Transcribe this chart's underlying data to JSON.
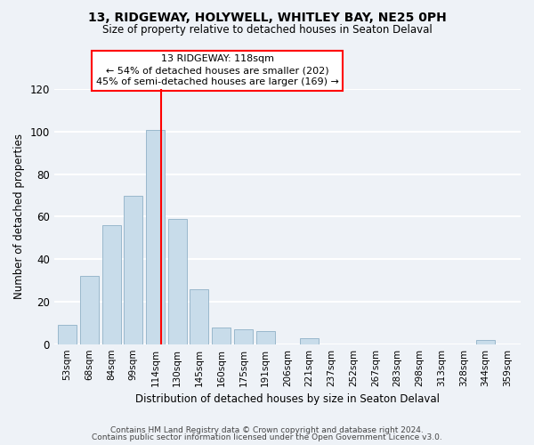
{
  "title": "13, RIDGEWAY, HOLYWELL, WHITLEY BAY, NE25 0PH",
  "subtitle": "Size of property relative to detached houses in Seaton Delaval",
  "xlabel": "Distribution of detached houses by size in Seaton Delaval",
  "ylabel": "Number of detached properties",
  "bar_color": "#c8dcea",
  "bar_edge_color": "#9ab8cc",
  "categories": [
    "53sqm",
    "68sqm",
    "84sqm",
    "99sqm",
    "114sqm",
    "130sqm",
    "145sqm",
    "160sqm",
    "175sqm",
    "191sqm",
    "206sqm",
    "221sqm",
    "237sqm",
    "252sqm",
    "267sqm",
    "283sqm",
    "298sqm",
    "313sqm",
    "328sqm",
    "344sqm",
    "359sqm"
  ],
  "values": [
    9,
    32,
    56,
    70,
    101,
    59,
    26,
    8,
    7,
    6,
    0,
    3,
    0,
    0,
    0,
    0,
    0,
    0,
    0,
    2,
    0
  ],
  "marker_color": "red",
  "annotation_line1": "13 RIDGEWAY: 118sqm",
  "annotation_line2": "← 54% of detached houses are smaller (202)",
  "annotation_line3": "45% of semi-detached houses are larger (169) →",
  "annotation_box_color": "white",
  "annotation_box_edge": "red",
  "ylim": [
    0,
    120
  ],
  "yticks": [
    0,
    20,
    40,
    60,
    80,
    100,
    120
  ],
  "footer1": "Contains HM Land Registry data © Crown copyright and database right 2024.",
  "footer2": "Contains public sector information licensed under the Open Government Licence v3.0.",
  "background_color": "#eef2f7",
  "grid_color": "white"
}
